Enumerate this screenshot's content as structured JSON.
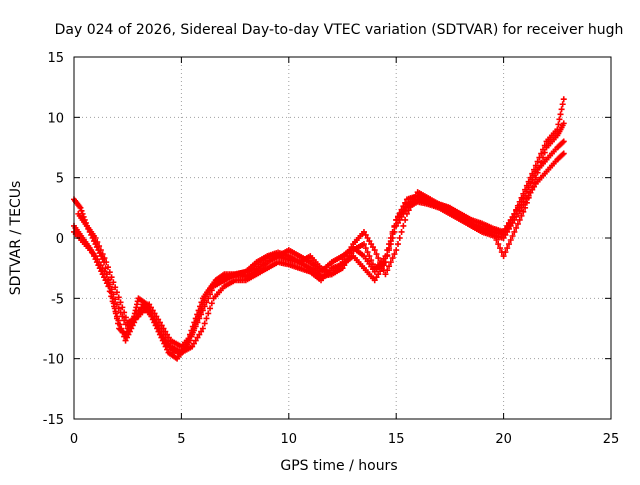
{
  "chart_data": {
    "type": "scatter",
    "title": "Day 024 of 2026, Sidereal Day-to-day VTEC variation (SDTVAR) for receiver hugh",
    "xlabel": "GPS time / hours",
    "ylabel": "SDTVAR / TECUs",
    "xlim": [
      0,
      25
    ],
    "ylim": [
      -15,
      15
    ],
    "xticks": [
      0,
      5,
      10,
      15,
      20,
      25
    ],
    "yticks": [
      -15,
      -10,
      -5,
      0,
      5,
      10,
      15
    ],
    "xtick_labels": [
      "0",
      "5",
      "10",
      "15",
      "20",
      "25"
    ],
    "ytick_labels": [
      "-15",
      "-10",
      "-5",
      "0",
      "5",
      "10",
      "15"
    ],
    "grid": true,
    "grid_style": "dotted",
    "legend": "none",
    "marker": "plus",
    "color": "#ff0000",
    "series": [
      {
        "x": [
          0.0,
          0.3,
          0.6,
          1.0,
          1.4,
          1.8,
          2.1,
          2.4,
          2.8,
          3.0,
          3.4,
          3.8,
          4.2,
          4.6,
          5.0,
          5.4,
          5.8,
          6.2,
          6.6,
          7.0,
          7.5,
          8.0,
          8.5,
          9.0,
          9.5,
          10.0,
          10.5,
          11.0,
          11.5,
          12.0,
          12.5,
          13.0,
          13.5,
          14.0,
          14.5,
          15.0,
          15.5,
          16.0,
          16.5,
          17.0,
          17.5,
          18.0,
          18.5,
          19.0,
          19.5,
          20.0,
          20.5,
          21.0,
          21.5,
          22.0,
          22.5,
          22.8
        ],
        "y": [
          3.2,
          2.5,
          1.0,
          -0.5,
          -2.0,
          -5.0,
          -7.5,
          -8.0,
          -6.5,
          -5.0,
          -5.5,
          -7.0,
          -8.5,
          -9.3,
          -9.5,
          -8.5,
          -6.5,
          -4.5,
          -3.5,
          -3.0,
          -3.0,
          -2.8,
          -2.0,
          -1.5,
          -1.5,
          -1.8,
          -2.0,
          -1.5,
          -2.5,
          -3.0,
          -2.5,
          -1.0,
          -0.5,
          -2.5,
          -2.0,
          1.5,
          3.2,
          3.5,
          3.0,
          2.8,
          2.5,
          2.0,
          1.5,
          1.2,
          0.8,
          0.5,
          2.0,
          4.0,
          6.0,
          8.0,
          9.0,
          11.5
        ]
      },
      {
        "x": [
          0.0,
          0.4,
          0.8,
          1.2,
          1.6,
          2.0,
          2.4,
          2.8,
          3.2,
          3.6,
          4.0,
          4.4,
          4.8,
          5.2,
          5.6,
          6.0,
          6.4,
          6.8,
          7.2,
          7.6,
          8.0,
          8.5,
          9.0,
          9.5,
          10.0,
          10.5,
          11.0,
          11.5,
          12.0,
          12.5,
          13.0,
          13.5,
          14.0,
          14.5,
          15.0,
          15.5,
          16.0,
          16.5,
          17.0,
          17.5,
          18.0,
          18.5,
          19.0,
          19.5,
          20.0,
          20.5,
          21.0,
          21.5,
          22.0,
          22.5,
          22.8
        ],
        "y": [
          1.0,
          0.0,
          -1.0,
          -2.5,
          -4.0,
          -6.5,
          -8.5,
          -7.0,
          -5.5,
          -6.5,
          -8.0,
          -9.5,
          -10.0,
          -9.0,
          -7.0,
          -5.0,
          -4.0,
          -3.5,
          -3.2,
          -3.0,
          -2.8,
          -2.5,
          -1.5,
          -1.2,
          -1.5,
          -2.0,
          -2.5,
          -3.2,
          -3.0,
          -2.0,
          -0.5,
          0.5,
          -1.0,
          -3.0,
          -1.0,
          2.0,
          3.8,
          3.3,
          2.8,
          2.5,
          1.8,
          1.0,
          0.8,
          0.5,
          -1.5,
          0.5,
          2.5,
          5.0,
          7.5,
          8.5,
          9.5
        ]
      },
      {
        "x": [
          0.0,
          0.5,
          1.0,
          1.5,
          2.0,
          2.5,
          3.0,
          3.5,
          4.0,
          4.5,
          5.0,
          5.5,
          6.0,
          6.5,
          7.0,
          7.5,
          8.0,
          8.5,
          9.0,
          9.5,
          10.0,
          10.5,
          11.0,
          11.5,
          12.0,
          12.5,
          13.0,
          13.5,
          14.0,
          14.5,
          15.0,
          15.5,
          16.0,
          16.5,
          17.0,
          17.5,
          18.0,
          18.5,
          19.0,
          19.5,
          20.0,
          20.5,
          21.0,
          21.5,
          22.0,
          22.5,
          22.8
        ],
        "y": [
          0.5,
          -0.5,
          -1.5,
          -3.0,
          -5.5,
          -7.5,
          -6.0,
          -6.0,
          -7.5,
          -9.0,
          -9.5,
          -9.0,
          -7.5,
          -5.0,
          -4.0,
          -3.5,
          -3.5,
          -3.0,
          -2.5,
          -2.0,
          -2.2,
          -2.5,
          -2.8,
          -3.5,
          -2.5,
          -2.2,
          -1.5,
          -2.5,
          -3.5,
          -2.0,
          1.0,
          2.5,
          3.0,
          2.8,
          2.5,
          2.0,
          1.5,
          1.0,
          0.5,
          0.2,
          0.0,
          1.5,
          3.0,
          4.5,
          5.5,
          6.5,
          7.0
        ]
      },
      {
        "x": [
          0.2,
          0.6,
          1.0,
          1.5,
          2.0,
          2.5,
          3.0,
          3.5,
          4.0,
          4.5,
          5.0,
          5.5,
          6.0,
          6.5,
          7.0,
          7.5,
          8.0,
          8.5,
          9.0,
          9.5,
          10.0,
          10.5,
          11.0,
          11.5,
          12.0,
          12.5,
          13.0,
          13.5,
          14.0,
          14.5,
          15.0,
          15.5,
          16.0,
          16.5,
          17.0,
          17.5,
          18.0,
          18.5,
          19.0,
          19.5,
          20.0,
          20.5,
          21.0,
          21.5,
          22.0,
          22.5,
          22.8
        ],
        "y": [
          2.0,
          1.0,
          0.0,
          -2.0,
          -4.5,
          -7.0,
          -6.5,
          -5.5,
          -7.0,
          -8.5,
          -9.0,
          -8.0,
          -6.0,
          -4.0,
          -3.5,
          -3.0,
          -3.2,
          -2.8,
          -2.0,
          -1.5,
          -1.0,
          -1.5,
          -2.0,
          -2.8,
          -2.0,
          -1.5,
          -0.8,
          -1.5,
          -2.8,
          -1.5,
          1.5,
          2.8,
          3.2,
          3.0,
          2.7,
          2.2,
          1.6,
          1.2,
          0.8,
          0.5,
          0.3,
          2.0,
          3.5,
          5.5,
          6.5,
          7.5,
          8.0
        ]
      }
    ]
  }
}
